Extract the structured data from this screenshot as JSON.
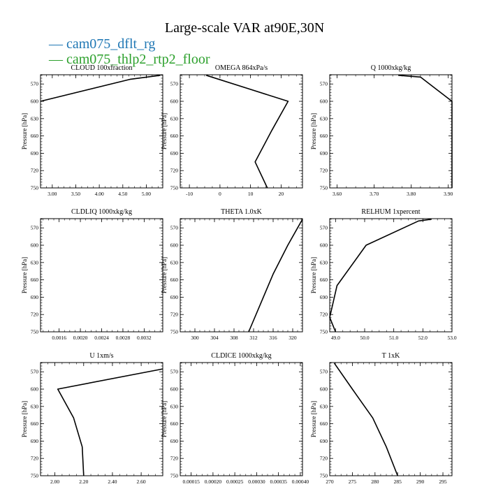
{
  "figure": {
    "title": "Large-scale VAR at90E,30N",
    "legend": [
      {
        "label": "cam075_dflt_rg",
        "color": "#1f77b4"
      },
      {
        "label": "cam075_thlp2_rtp2_floor",
        "color": "#2ca02c"
      }
    ]
  },
  "chart_data": [
    {
      "type": "line",
      "title": "CLOUD  100xfraction",
      "ylabel": "Pressure [hPa]",
      "xlim": [
        2.75,
        5.35
      ],
      "xticks": [
        3.0,
        3.5,
        4.0,
        4.5,
        5.0
      ],
      "xtick_labels": [
        "3.00",
        "3.50",
        "4.00",
        "4.50",
        "5.00"
      ],
      "ylim": [
        750,
        554
      ],
      "yticks": [
        570,
        600,
        630,
        660,
        690,
        720,
        750
      ],
      "ytick_labels": [
        "570",
        "600",
        "630",
        "660",
        "690",
        "720",
        "750"
      ],
      "series": [
        {
          "color": "#000000",
          "points": [
            [
              2.75,
              600
            ],
            [
              4.65,
              562
            ],
            [
              5.3,
              555
            ]
          ]
        }
      ]
    },
    {
      "type": "line",
      "title": "OMEGA  864xPa/s",
      "ylabel": "Pressure [hPa]",
      "xlim": [
        -13,
        27
      ],
      "xticks": [
        -10,
        0,
        10,
        20
      ],
      "xtick_labels": [
        "-10",
        "0",
        "10",
        "20"
      ],
      "ylim": [
        750,
        554
      ],
      "yticks": [
        570,
        600,
        630,
        660,
        690,
        720,
        750
      ],
      "ytick_labels": [
        "570",
        "600",
        "630",
        "660",
        "690",
        "720",
        "750"
      ],
      "series": [
        {
          "color": "#000000",
          "points": [
            [
              -4.5,
              555
            ],
            [
              22.3,
              600
            ],
            [
              17,
              650
            ],
            [
              11.5,
              705
            ],
            [
              15.5,
              750
            ]
          ]
        }
      ]
    },
    {
      "type": "line",
      "title": "Q  1000xkg/kg",
      "ylabel": "Pressure [hPa]",
      "xlim": [
        3.58,
        3.91
      ],
      "xticks": [
        3.6,
        3.7,
        3.8,
        3.9
      ],
      "xtick_labels": [
        "3.60",
        "3.70",
        "3.80",
        "3.90"
      ],
      "ylim": [
        750,
        554
      ],
      "yticks": [
        570,
        600,
        630,
        660,
        690,
        720,
        750
      ],
      "ytick_labels": [
        "570",
        "600",
        "630",
        "660",
        "690",
        "720",
        "750"
      ],
      "series": [
        {
          "color": "#000000",
          "points": [
            [
              3.765,
              555
            ],
            [
              3.825,
              558
            ],
            [
              3.91,
              600
            ],
            [
              3.91,
              750
            ]
          ]
        }
      ]
    },
    {
      "type": "line",
      "title": "CLDLIQ  1000xkg/kg",
      "ylabel": "Pressure [hPa]",
      "xlim": [
        0.00125,
        0.00355
      ],
      "xticks": [
        0.0016,
        0.002,
        0.0024,
        0.0028,
        0.0032
      ],
      "xtick_labels": [
        "0.0016",
        "0.0020",
        "0.0024",
        "0.0028",
        "0.0032"
      ],
      "ylim": [
        750,
        554
      ],
      "yticks": [
        570,
        600,
        630,
        660,
        690,
        720,
        750
      ],
      "ytick_labels": [
        "570",
        "600",
        "630",
        "660",
        "690",
        "720",
        "750"
      ],
      "series": []
    },
    {
      "type": "line",
      "title": "THETA  1.0xK",
      "ylabel": "Pressure [hPa]",
      "xlim": [
        297,
        322
      ],
      "xticks": [
        300,
        304,
        308,
        312,
        316,
        320
      ],
      "xtick_labels": [
        "300",
        "304",
        "308",
        "312",
        "316",
        "320"
      ],
      "ylim": [
        750,
        554
      ],
      "yticks": [
        570,
        600,
        630,
        660,
        690,
        720,
        750
      ],
      "ytick_labels": [
        "570",
        "600",
        "630",
        "660",
        "690",
        "720",
        "750"
      ],
      "series": [
        {
          "color": "#000000",
          "points": [
            [
              322,
              555
            ],
            [
              319,
              600
            ],
            [
              316,
              650
            ],
            [
              313.5,
              700
            ],
            [
              311,
              750
            ]
          ]
        }
      ]
    },
    {
      "type": "line",
      "title": "RELHUM  1xpercent",
      "ylabel": "Pressure [hPa]",
      "xlim": [
        48.8,
        53.0
      ],
      "xticks": [
        49.0,
        50.0,
        51.0,
        52.0,
        53.0
      ],
      "xtick_labels": [
        "49.0",
        "50.0",
        "51.0",
        "52.0",
        "53.0"
      ],
      "ylim": [
        750,
        554
      ],
      "yticks": [
        570,
        600,
        630,
        660,
        690,
        720,
        750
      ],
      "ytick_labels": [
        "570",
        "600",
        "630",
        "660",
        "690",
        "720",
        "750"
      ],
      "series": [
        {
          "color": "#000000",
          "points": [
            [
              52.3,
              555
            ],
            [
              51.85,
              558
            ],
            [
              50.05,
              600
            ],
            [
              49.05,
              670
            ],
            [
              48.8,
              725
            ],
            [
              49.0,
              750
            ]
          ]
        }
      ]
    },
    {
      "type": "line",
      "title": "U  1xm/s",
      "ylabel": "Pressure [hPa]",
      "xlim": [
        1.9,
        2.75
      ],
      "xticks": [
        2.0,
        2.2,
        2.4,
        2.6
      ],
      "xtick_labels": [
        "2.00",
        "2.20",
        "2.40",
        "2.60"
      ],
      "ylim": [
        750,
        554
      ],
      "yticks": [
        570,
        600,
        630,
        660,
        690,
        720,
        750
      ],
      "ytick_labels": [
        "570",
        "600",
        "630",
        "660",
        "690",
        "720",
        "750"
      ],
      "series": [
        {
          "color": "#000000",
          "points": [
            [
              2.75,
              565
            ],
            [
              2.02,
              600
            ],
            [
              2.13,
              650
            ],
            [
              2.19,
              700
            ],
            [
              2.2,
              750
            ]
          ]
        }
      ]
    },
    {
      "type": "line",
      "title": "CLDICE  1000xkg/kg",
      "ylabel": "Pressure [hPa]",
      "xlim": [
        0.000125,
        0.000405
      ],
      "xticks": [
        0.00015,
        0.0002,
        0.00025,
        0.0003,
        0.00035,
        0.0004
      ],
      "xtick_labels": [
        "0.00015",
        "0.00020",
        "0.00025",
        "0.00030",
        "0.00035",
        "0.00040"
      ],
      "ylim": [
        750,
        554
      ],
      "yticks": [
        570,
        600,
        630,
        660,
        690,
        720,
        750
      ],
      "ytick_labels": [
        "570",
        "600",
        "630",
        "660",
        "690",
        "720",
        "750"
      ],
      "series": []
    },
    {
      "type": "line",
      "title": "T  1xK",
      "ylabel": "Pressure [hPa]",
      "xlim": [
        270,
        297
      ],
      "xticks": [
        270,
        275,
        280,
        285,
        290,
        295
      ],
      "xtick_labels": [
        "270",
        "275",
        "280",
        "285",
        "290",
        "295"
      ],
      "ylim": [
        750,
        554
      ],
      "yticks": [
        570,
        600,
        630,
        660,
        690,
        720,
        750
      ],
      "ytick_labels": [
        "570",
        "600",
        "630",
        "660",
        "690",
        "720",
        "750"
      ],
      "series": [
        {
          "color": "#000000",
          "points": [
            [
              271,
              555
            ],
            [
              275,
              600
            ],
            [
              279.5,
              650
            ],
            [
              282.5,
              700
            ],
            [
              285,
              750
            ]
          ]
        }
      ]
    }
  ]
}
